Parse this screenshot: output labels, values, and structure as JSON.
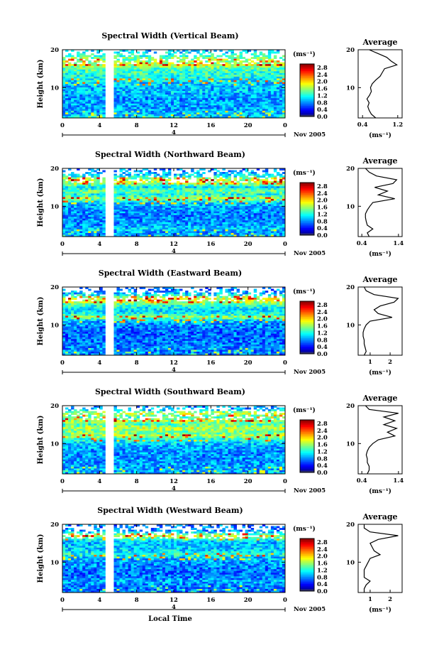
{
  "chart_data": [
    {
      "type": "heatmap",
      "title": "Spectral Width (Vertical Beam)",
      "ylabel": "Height (km)",
      "xlim": [
        0,
        24
      ],
      "ylim": [
        2,
        20
      ],
      "xticks": [
        "0",
        "4",
        "8",
        "12",
        "16",
        "20",
        "0"
      ],
      "yticks": [
        "10",
        "20"
      ],
      "date_label": "Nov 2005",
      "day_marker": "4",
      "colorbar": {
        "unit": "(ms⁻¹)",
        "ticks": [
          "0.0",
          "0.4",
          "0.8",
          "1.2",
          "1.6",
          "2.0",
          "2.4",
          "2.8"
        ],
        "range": [
          0,
          3.0
        ]
      },
      "profile": {
        "title": "Average",
        "xlabel": "(ms⁻¹)",
        "xticks": [
          "0.4",
          "1.2"
        ],
        "xlim": [
          0.3,
          1.3
        ],
        "yticks": [
          "10",
          "20"
        ],
        "height": [
          2,
          3,
          4,
          5,
          6,
          7,
          8,
          9,
          10,
          11,
          12,
          13,
          14,
          15,
          16,
          17,
          18,
          19,
          20
        ],
        "value": [
          0.7,
          0.6,
          0.55,
          0.52,
          0.55,
          0.5,
          0.56,
          0.6,
          0.58,
          0.62,
          0.7,
          0.8,
          0.85,
          0.9,
          1.18,
          1.05,
          0.95,
          0.75,
          0.55
        ]
      }
    },
    {
      "type": "heatmap",
      "title": "Spectral Width (Northward Beam)",
      "ylabel": "Height (km)",
      "xlim": [
        0,
        24
      ],
      "ylim": [
        2,
        20
      ],
      "xticks": [
        "0",
        "4",
        "8",
        "12",
        "16",
        "20",
        "0"
      ],
      "yticks": [
        "10",
        "20"
      ],
      "date_label": "Nov 2005",
      "day_marker": "4",
      "colorbar": {
        "unit": "(ms⁻¹)",
        "ticks": [
          "0.0",
          "0.4",
          "0.8",
          "1.2",
          "1.6",
          "2.0",
          "2.4",
          "2.8"
        ],
        "range": [
          0,
          3.0
        ]
      },
      "profile": {
        "title": "Average",
        "xlabel": "(ms⁻¹)",
        "xticks": [
          "0.4",
          "1.4"
        ],
        "xlim": [
          0.3,
          1.5
        ],
        "yticks": [
          "10",
          "20"
        ],
        "height": [
          2,
          3,
          4,
          5,
          6,
          7,
          8,
          9,
          10,
          11,
          12,
          13,
          14,
          15,
          16,
          17,
          18,
          19,
          20
        ],
        "value": [
          0.6,
          0.55,
          0.7,
          0.55,
          0.52,
          0.5,
          0.5,
          0.55,
          0.62,
          0.7,
          1.3,
          0.85,
          1.1,
          0.75,
          1.25,
          1.35,
          0.8,
          0.6,
          0.5
        ]
      }
    },
    {
      "type": "heatmap",
      "title": "Spectral Width (Eastward Beam)",
      "ylabel": "Height (km)",
      "xlim": [
        0,
        24
      ],
      "ylim": [
        2,
        20
      ],
      "xticks": [
        "0",
        "4",
        "8",
        "12",
        "16",
        "20",
        "0"
      ],
      "yticks": [
        "10",
        "20"
      ],
      "date_label": "Nov 2005",
      "day_marker": "4",
      "colorbar": {
        "unit": "(ms⁻¹)",
        "ticks": [
          "0.0",
          "0.4",
          "0.8",
          "1.2",
          "1.6",
          "2.0",
          "2.4",
          "2.8"
        ],
        "range": [
          0,
          3.0
        ]
      },
      "profile": {
        "title": "Average",
        "xlabel": "(ms⁻¹)",
        "xticks": [
          "1",
          "2"
        ],
        "xlim": [
          0.4,
          2.6
        ],
        "yticks": [
          "10",
          "20"
        ],
        "height": [
          2,
          3,
          4,
          5,
          6,
          7,
          8,
          9,
          10,
          11,
          12,
          13,
          14,
          15,
          16,
          17,
          18,
          19,
          20
        ],
        "value": [
          0.7,
          0.8,
          0.75,
          0.7,
          0.7,
          0.65,
          0.65,
          0.7,
          0.8,
          1.0,
          2.1,
          1.4,
          1.2,
          1.5,
          2.2,
          2.4,
          1.2,
          0.8,
          0.7
        ]
      }
    },
    {
      "type": "heatmap",
      "title": "Spectral Width (Southward Beam)",
      "ylabel": "Height (km)",
      "xlim": [
        0,
        24
      ],
      "ylim": [
        2,
        20
      ],
      "xticks": [
        "0",
        "4",
        "8",
        "12",
        "16",
        "20",
        "0"
      ],
      "yticks": [
        "10",
        "20"
      ],
      "date_label": "Nov 2005",
      "day_marker": "4",
      "colorbar": {
        "unit": "(ms⁻¹)",
        "ticks": [
          "0.0",
          "0.4",
          "0.8",
          "1.2",
          "1.6",
          "2.0",
          "2.4",
          "2.8"
        ],
        "range": [
          0,
          3.0
        ]
      },
      "profile": {
        "title": "Average",
        "xlabel": "(ms⁻¹)",
        "xticks": [
          "0.4",
          "1.4"
        ],
        "xlim": [
          0.3,
          1.5
        ],
        "yticks": [
          "10",
          "20"
        ],
        "height": [
          2,
          3,
          4,
          5,
          6,
          7,
          8,
          9,
          10,
          11,
          12,
          13,
          14,
          15,
          16,
          17,
          18,
          19,
          20
        ],
        "value": [
          0.55,
          0.6,
          0.6,
          0.55,
          0.55,
          0.52,
          0.55,
          0.6,
          0.7,
          0.85,
          1.3,
          1.1,
          1.35,
          1.0,
          1.3,
          1.0,
          1.4,
          0.6,
          0.5
        ]
      }
    },
    {
      "type": "heatmap",
      "title": "Spectral Width (Westward Beam)",
      "ylabel": "Height (km)",
      "xlabel": "Local Time",
      "xlim": [
        0,
        24
      ],
      "ylim": [
        2,
        20
      ],
      "xticks": [
        "0",
        "4",
        "8",
        "12",
        "16",
        "20",
        "0"
      ],
      "yticks": [
        "10",
        "20"
      ],
      "date_label": "Nov 2005",
      "day_marker": "4",
      "colorbar": {
        "unit": "(ms⁻¹)",
        "ticks": [
          "0.0",
          "0.4",
          "0.8",
          "1.2",
          "1.6",
          "2.0",
          "2.4",
          "2.8"
        ],
        "range": [
          0,
          3.0
        ]
      },
      "profile": {
        "title": "Average",
        "xlabel": "(ms⁻¹)",
        "xticks": [
          "1",
          "2"
        ],
        "xlim": [
          0.4,
          2.6
        ],
        "yticks": [
          "10",
          "20"
        ],
        "height": [
          2,
          3,
          4,
          5,
          6,
          7,
          8,
          9,
          10,
          11,
          12,
          13,
          14,
          15,
          16,
          17,
          18,
          19,
          20
        ],
        "value": [
          0.7,
          0.7,
          0.8,
          1.0,
          0.7,
          0.7,
          0.7,
          0.8,
          0.9,
          1.0,
          1.5,
          1.2,
          1.1,
          1.0,
          1.4,
          2.4,
          1.0,
          0.7,
          0.7
        ]
      }
    }
  ]
}
